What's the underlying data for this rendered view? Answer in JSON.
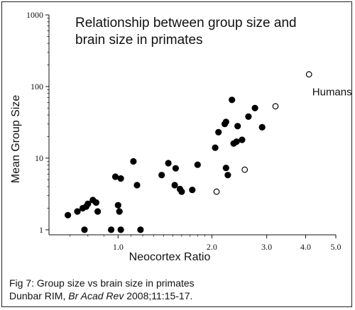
{
  "chart_data": {
    "type": "scatter",
    "title_lines": [
      "Relationship between group size and",
      "brain size in primates"
    ],
    "xlabel": "Neocortex Ratio",
    "ylabel": "Mean Group Size",
    "x_scale": "log",
    "y_scale": "log",
    "xlim": [
      0.6,
      5.0
    ],
    "ylim": [
      0.85,
      1000
    ],
    "x_ticks": [
      1.0,
      2.0,
      3.0,
      4.0,
      5.0
    ],
    "x_tick_labels": [
      "1.0",
      "2.0",
      "3.0",
      "4.0",
      "5.0"
    ],
    "y_ticks": [
      1,
      10,
      100,
      1000
    ],
    "y_tick_labels": [
      "1",
      "10",
      "100",
      "1000"
    ],
    "grid": false,
    "series": [
      {
        "marker": "filled-circle",
        "points": [
          [
            0.69,
            1.6
          ],
          [
            0.74,
            1.8
          ],
          [
            0.77,
            2.0
          ],
          [
            0.79,
            2.1
          ],
          [
            0.8,
            2.3
          ],
          [
            0.83,
            2.6
          ],
          [
            0.85,
            2.4
          ],
          [
            0.78,
            1.0
          ],
          [
            0.86,
            1.8
          ],
          [
            0.95,
            1.0
          ],
          [
            0.98,
            5.5
          ],
          [
            1.02,
            5.2
          ],
          [
            1.0,
            2.2
          ],
          [
            1.01,
            1.8
          ],
          [
            1.02,
            1.0
          ],
          [
            1.12,
            9.0
          ],
          [
            1.15,
            4.2
          ],
          [
            1.18,
            1.0
          ],
          [
            1.38,
            5.8
          ],
          [
            1.45,
            8.5
          ],
          [
            1.53,
            7.2
          ],
          [
            1.52,
            4.2
          ],
          [
            1.58,
            3.7
          ],
          [
            1.6,
            3.4
          ],
          [
            1.73,
            3.6
          ],
          [
            1.8,
            8.1
          ],
          [
            2.05,
            14
          ],
          [
            2.1,
            23
          ],
          [
            2.2,
            30
          ],
          [
            2.22,
            32
          ],
          [
            2.22,
            7.3
          ],
          [
            2.25,
            5.8
          ],
          [
            2.32,
            65
          ],
          [
            2.35,
            16
          ],
          [
            2.4,
            17
          ],
          [
            2.42,
            28
          ],
          [
            2.5,
            18
          ],
          [
            2.62,
            38
          ],
          [
            2.75,
            50
          ],
          [
            2.9,
            27
          ]
        ]
      },
      {
        "marker": "open-circle",
        "points": [
          [
            2.07,
            3.4
          ],
          [
            2.55,
            6.9
          ],
          [
            3.2,
            53
          ],
          [
            4.1,
            148
          ]
        ]
      }
    ],
    "annotations": [
      {
        "text": "Humans",
        "x": 4.2,
        "y": 75
      }
    ]
  },
  "caption": {
    "line1": "Fig 7: Group size vs brain size in primates",
    "author": "Dunbar RIM, ",
    "journal": "Br Acad Rev",
    "citation": " 2008;11:15-17."
  }
}
